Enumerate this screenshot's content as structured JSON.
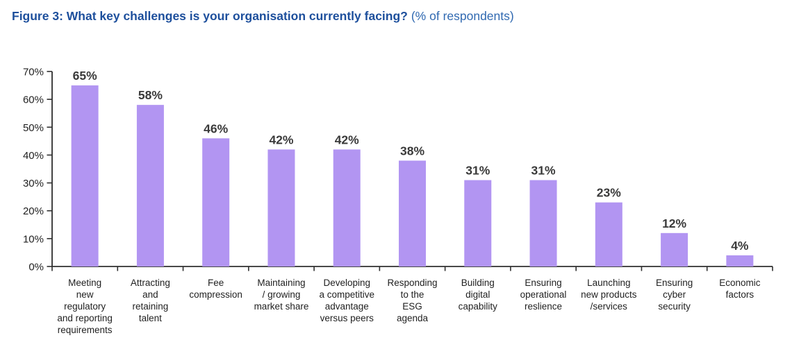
{
  "title": {
    "bold": "Figure 3: What key challenges is your organisation currently facing?",
    "light": "(% of respondents)"
  },
  "chart_data": {
    "type": "bar",
    "title": "What key challenges is your organisation currently facing?",
    "subtitle": "% of respondents",
    "categories": [
      "Meeting new regulatory and reporting requirements",
      "Attracting and retaining talent",
      "Fee compression",
      "Maintaining / growing market share",
      "Developing a competitive advantage versus peers",
      "Responding to the ESG agenda",
      "Building digital capability",
      "Ensuring operational reslience",
      "Launching new products /services",
      "Ensuring cyber security",
      "Economic factors"
    ],
    "category_lines": [
      [
        "Meeting",
        "new",
        "regulatory",
        "and reporting",
        "requirements"
      ],
      [
        "Attracting",
        "and",
        "retaining",
        "talent"
      ],
      [
        "Fee",
        "compression"
      ],
      [
        "Maintaining",
        "/ growing",
        "market share"
      ],
      [
        "Developing",
        "a competitive",
        "advantage",
        "versus peers"
      ],
      [
        "Responding",
        "to the",
        "ESG",
        "agenda"
      ],
      [
        "Building",
        "digital",
        "capability"
      ],
      [
        "Ensuring",
        "operational",
        "reslience"
      ],
      [
        "Launching",
        "new products",
        "/services"
      ],
      [
        "Ensuring",
        "cyber",
        "security"
      ],
      [
        "Economic",
        "factors"
      ]
    ],
    "values": [
      65,
      58,
      46,
      42,
      42,
      38,
      31,
      31,
      23,
      12,
      4
    ],
    "value_labels": [
      "65%",
      "58%",
      "46%",
      "42%",
      "42%",
      "38%",
      "31%",
      "31%",
      "23%",
      "12%",
      "4%"
    ],
    "value_suffix": "%",
    "xlabel": "",
    "ylabel": "",
    "ylim": [
      0,
      70
    ],
    "ytick_step": 10,
    "ytick_labels": [
      "0%",
      "10%",
      "20%",
      "30%",
      "40%",
      "50%",
      "60%",
      "70%"
    ],
    "grid": false,
    "legend": "none",
    "colors": {
      "bar": "#b295f2",
      "axis": "#2e2e2e",
      "value_label": "#3a3a3a",
      "tick_label": "#1f1f1f",
      "title_bold": "#1d4f9c",
      "title_light": "#3069b1"
    }
  }
}
